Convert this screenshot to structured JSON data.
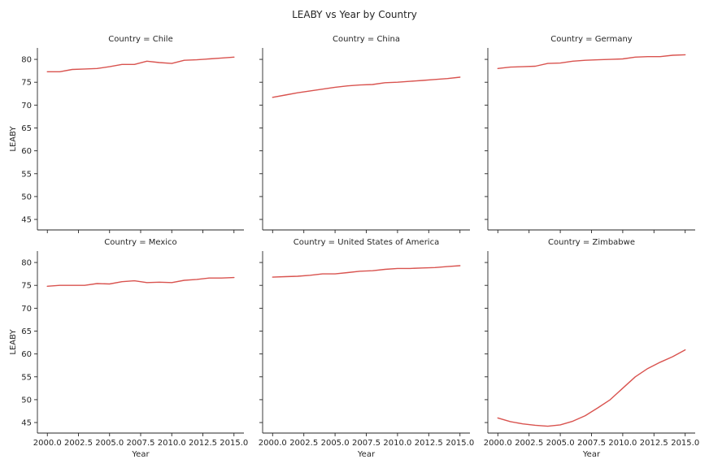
{
  "chart_data": {
    "type": "line",
    "title": "LEABY vs Year by Country",
    "xlabel": "Year",
    "ylabel": "LEABY",
    "xlim": [
      1999.2,
      2015.8
    ],
    "ylim": [
      42.7,
      82.5
    ],
    "x_ticks": [
      2000.0,
      2002.5,
      2005.0,
      2007.5,
      2010.0,
      2012.5,
      2015.0
    ],
    "x_tick_labels": [
      "2000.0",
      "2002.5",
      "2005.0",
      "2007.5",
      "2010.0",
      "2012.5",
      "2015.0"
    ],
    "y_ticks": [
      45,
      50,
      55,
      60,
      65,
      70,
      75,
      80
    ],
    "y_tick_labels": [
      "45",
      "50",
      "55",
      "60",
      "65",
      "70",
      "75",
      "80"
    ],
    "line_color": "#d9534f",
    "grid": false,
    "x": [
      2000,
      2001,
      2002,
      2003,
      2004,
      2005,
      2006,
      2007,
      2008,
      2009,
      2010,
      2011,
      2012,
      2013,
      2014,
      2015
    ],
    "panels": [
      {
        "title": "Country = Chile",
        "values": [
          77.3,
          77.3,
          77.8,
          77.9,
          78.0,
          78.4,
          78.9,
          78.9,
          79.6,
          79.3,
          79.1,
          79.8,
          79.9,
          80.1,
          80.3,
          80.5
        ]
      },
      {
        "title": "Country = China",
        "values": [
          71.7,
          72.2,
          72.7,
          73.1,
          73.5,
          73.9,
          74.2,
          74.4,
          74.5,
          74.9,
          75.0,
          75.2,
          75.4,
          75.6,
          75.8,
          76.1
        ]
      },
      {
        "title": "Country = Germany",
        "values": [
          78.0,
          78.3,
          78.4,
          78.5,
          79.1,
          79.2,
          79.6,
          79.8,
          79.9,
          80.0,
          80.1,
          80.5,
          80.6,
          80.6,
          80.9,
          81.0
        ]
      },
      {
        "title": "Country = Mexico",
        "values": [
          74.8,
          75.0,
          75.0,
          75.0,
          75.4,
          75.3,
          75.8,
          76.0,
          75.6,
          75.7,
          75.6,
          76.1,
          76.3,
          76.6,
          76.6,
          76.7
        ]
      },
      {
        "title": "Country = United States of America",
        "values": [
          76.8,
          76.9,
          77.0,
          77.2,
          77.5,
          77.5,
          77.8,
          78.1,
          78.2,
          78.5,
          78.7,
          78.7,
          78.8,
          78.9,
          79.1,
          79.3
        ]
      },
      {
        "title": "Country = Zimbabwe",
        "values": [
          46.0,
          45.2,
          44.7,
          44.4,
          44.2,
          44.5,
          45.3,
          46.5,
          48.2,
          50.0,
          52.5,
          55.0,
          56.8,
          58.2,
          59.4,
          60.9
        ]
      }
    ]
  }
}
